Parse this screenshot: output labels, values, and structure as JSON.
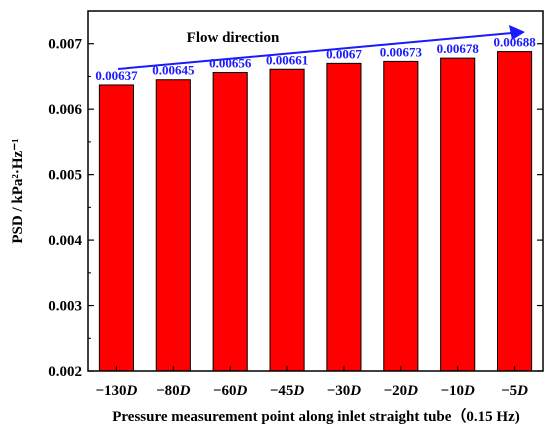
{
  "chart_data": {
    "type": "bar",
    "categories": [
      "−130D",
      "−80D",
      "−60D",
      "−45D",
      "−30D",
      "−20D",
      "−10D",
      "−5D"
    ],
    "values": [
      0.00637,
      0.00645,
      0.00656,
      0.00661,
      0.0067,
      0.00673,
      0.00678,
      0.00688
    ],
    "value_labels": [
      "0.00637",
      "0.00645",
      "0.00656",
      "0.00661",
      "0.0067",
      "0.00673",
      "0.00678",
      "0.00688"
    ],
    "ylim": [
      0.002,
      0.0075
    ],
    "yticks": [
      0.002,
      0.003,
      0.004,
      0.005,
      0.006,
      0.007
    ],
    "ytick_labels": [
      "0.002",
      "0.003",
      "0.004",
      "0.005",
      "0.006",
      "0.007"
    ],
    "ylabel": "PSD / kPa²·Hz⁻¹",
    "xlabel": "Pressure measurement point along inlet straight tube（0.15 Hz)",
    "annotation": "Flow direction",
    "bar_color": "#ff0000",
    "label_color": "#1a1aff",
    "arrow_color": "#1a1aff",
    "grid": false
  }
}
